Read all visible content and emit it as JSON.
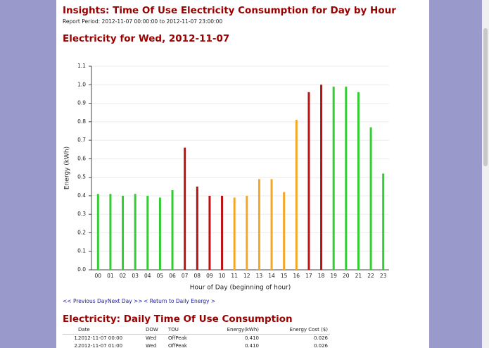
{
  "header": {
    "title": "Insights: Time Of Use Electricity Consumption for Day by Hour",
    "report_period": "Report Period: 2012-11-07 00:00:00 to 2012-11-07 23:00:00"
  },
  "chart_data": {
    "type": "bar",
    "title": "Electricity for Wed, 2012-11-07",
    "y_label": "Energy (kWh)",
    "x_label": "Hour of Day (beginning of hour)",
    "categories": [
      "00",
      "01",
      "02",
      "03",
      "04",
      "05",
      "06",
      "07",
      "08",
      "09",
      "10",
      "11",
      "12",
      "13",
      "14",
      "15",
      "16",
      "17",
      "18",
      "19",
      "20",
      "21",
      "22",
      "23"
    ],
    "values": [
      0.41,
      0.41,
      0.4,
      0.41,
      0.4,
      0.39,
      0.43,
      0.66,
      0.45,
      0.4,
      0.4,
      0.39,
      0.4,
      0.49,
      0.49,
      0.42,
      0.81,
      0.96,
      1.0,
      0.99,
      0.99,
      0.96,
      0.77,
      0.52
    ],
    "colors": [
      "#33cc33",
      "#33cc33",
      "#33cc33",
      "#33cc33",
      "#33cc33",
      "#33cc33",
      "#33cc33",
      "#bb1111",
      "#bb1111",
      "#bb1111",
      "#bb1111",
      "#f5a623",
      "#f5a623",
      "#f5a623",
      "#f5a623",
      "#f5a623",
      "#f5a623",
      "#bb1111",
      "#bb1111",
      "#33cc33",
      "#33cc33",
      "#33cc33",
      "#33cc33",
      "#33cc33"
    ],
    "ylim": [
      0,
      1.1
    ],
    "yticks": [
      {
        "value": 0,
        "label": "0.0"
      },
      0.1,
      0.2,
      0.3,
      0.4,
      0.5,
      0.6,
      0.7,
      0.8,
      0.9,
      {
        "value": 1,
        "label": "1.0"
      },
      1.1
    ],
    "grid": true
  },
  "nav": {
    "previous": "<< Previous Day",
    "next": "Next Day >>",
    "return": "< Return to Daily Energy >"
  },
  "table": {
    "title": "Electricity: Daily Time Of Use Consumption",
    "columns": [
      "Date",
      "DOW",
      "TOU",
      "Energy(kWh)",
      "Energy Cost ($)"
    ],
    "rows": [
      [
        "1.",
        "2012-11-07 00:00",
        "Wed",
        "OffPeak",
        "0.410",
        "0.026"
      ],
      [
        "2.",
        "2012-11-07 01:00",
        "Wed",
        "OffPeak",
        "0.410",
        "0.026"
      ]
    ]
  }
}
